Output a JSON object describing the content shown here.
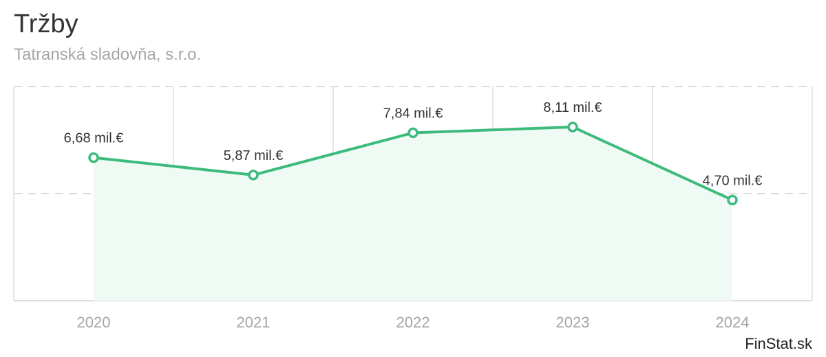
{
  "header": {
    "title": "Tržby",
    "subtitle": "Tatranská sladovňa, s.r.o."
  },
  "footer": {
    "source": "FinStat.sk"
  },
  "colors": {
    "line": "#3dbb7d",
    "area": "#effaf4",
    "grid": "#dddddd",
    "text": "#333333",
    "muted": "#a6a6a6"
  },
  "chart_data": {
    "type": "area",
    "title": "Tržby",
    "subtitle": "Tatranská sladovňa, s.r.o.",
    "categories": [
      "2020",
      "2021",
      "2022",
      "2023",
      "2024"
    ],
    "series": [
      {
        "name": "Tržby",
        "values": [
          6.68,
          5.87,
          7.84,
          8.11,
          4.7
        ],
        "labels": [
          "6,68 mil.€",
          "5,87 mil.€",
          "7,84 mil.€",
          "8,11 mil.€",
          "4,70 mil.€"
        ]
      }
    ],
    "unit": "mil.€",
    "ylim": [
      0,
      10
    ],
    "grid": true,
    "xlabel": "",
    "ylabel": ""
  }
}
